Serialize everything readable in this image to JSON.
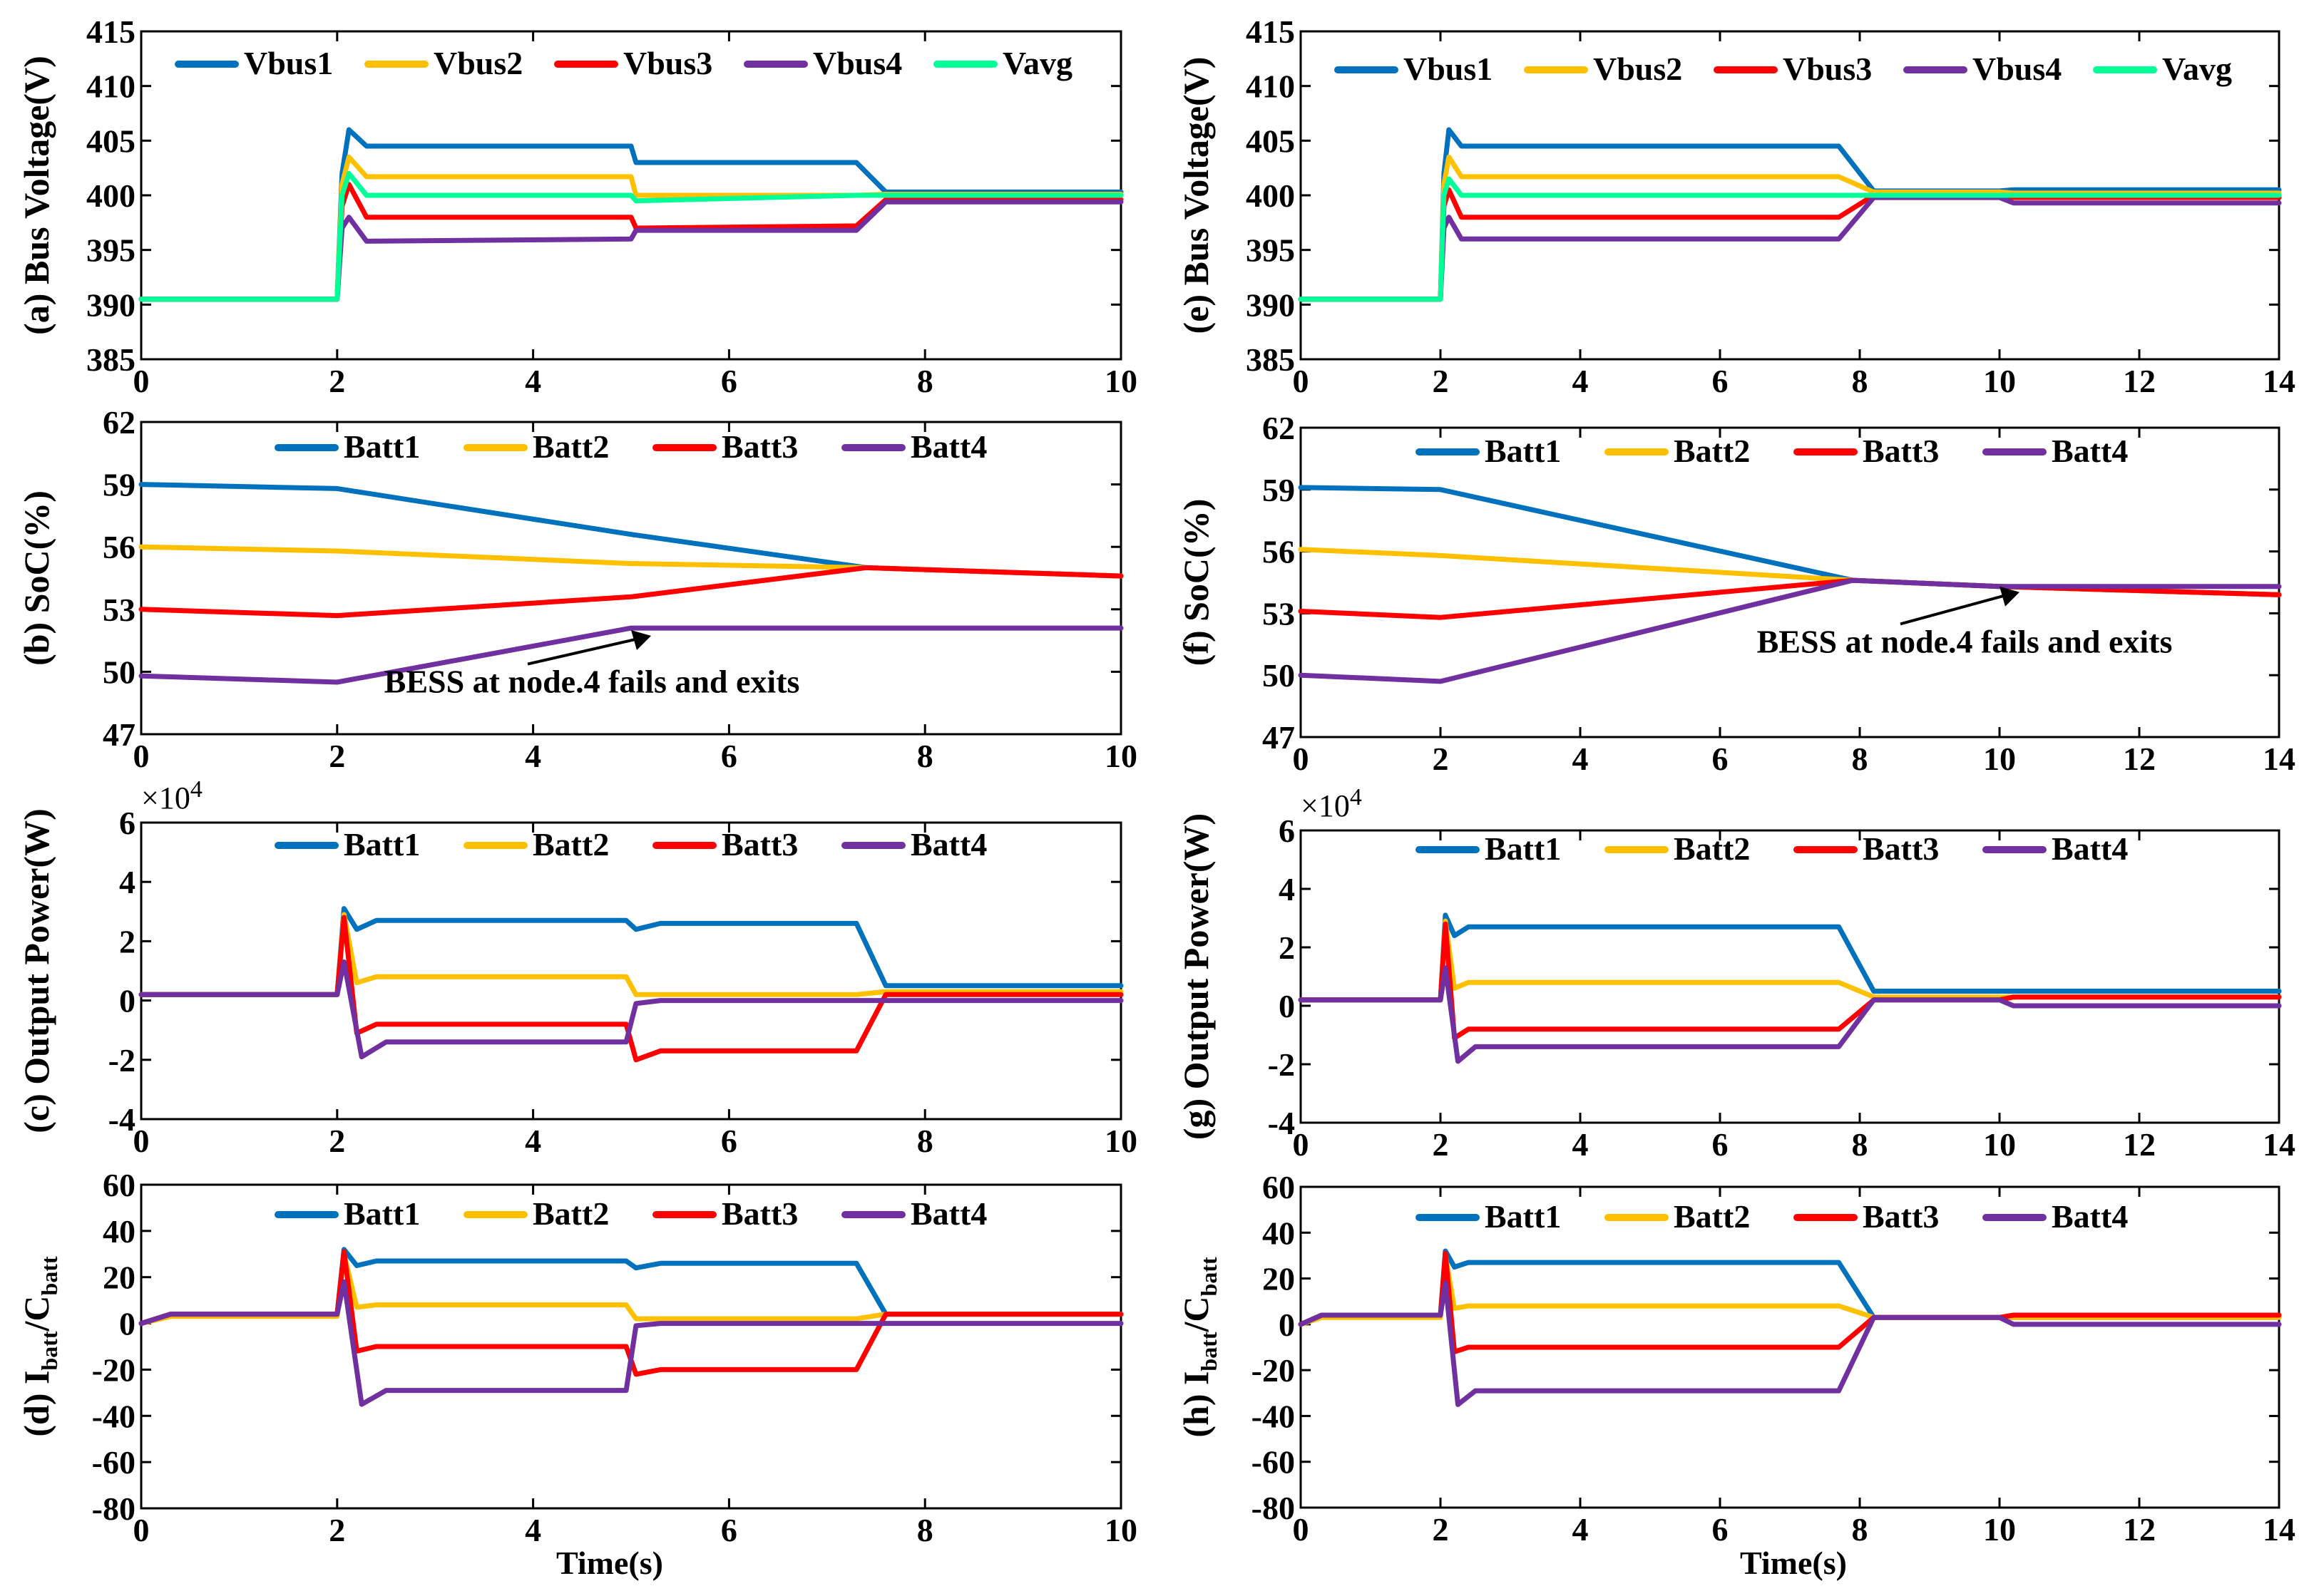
{
  "figure": {
    "shared_xlabel": "Time(s)"
  },
  "colors": {
    "Vbus1": "#0072BD",
    "Vbus2": "#FFC000",
    "Vbus3": "#FF0000",
    "Vbus4": "#7030A0",
    "Vavg": "#00FF99",
    "Batt1": "#0072BD",
    "Batt2": "#FFC000",
    "Batt3": "#FF0000",
    "Batt4": "#7030A0"
  },
  "chart_data": [
    {
      "id": "a",
      "type": "line",
      "ylabel": "(a) Bus Voltage(V)",
      "xlabel": "",
      "xlim": [
        0,
        10
      ],
      "ylim": [
        385,
        415
      ],
      "xticks": [
        0,
        2,
        4,
        6,
        8,
        10
      ],
      "yticks": [
        385,
        390,
        395,
        400,
        405,
        410,
        415
      ],
      "legend": [
        "Vbus1",
        "Vbus2",
        "Vbus3",
        "Vbus4",
        "Vavg"
      ],
      "series": [
        {
          "name": "Vbus1",
          "x": [
            0,
            2,
            2.05,
            2.12,
            2.3,
            5,
            5.05,
            7.3,
            7.6,
            10
          ],
          "y": [
            390.5,
            390.5,
            402,
            406,
            404.5,
            404.5,
            403,
            403,
            400.3,
            400.3
          ]
        },
        {
          "name": "Vbus2",
          "x": [
            0,
            2,
            2.05,
            2.12,
            2.3,
            5,
            5.05,
            7.3,
            7.6,
            10
          ],
          "y": [
            390.5,
            390.5,
            401,
            403.5,
            401.7,
            401.7,
            400,
            400,
            400.1,
            400.1
          ]
        },
        {
          "name": "Vbus3",
          "x": [
            0,
            2,
            2.05,
            2.12,
            2.3,
            5,
            5.05,
            7.3,
            7.6,
            10
          ],
          "y": [
            390.5,
            390.5,
            399,
            401,
            398,
            398,
            397,
            397.2,
            399.6,
            399.6
          ]
        },
        {
          "name": "Vbus4",
          "x": [
            0,
            2,
            2.05,
            2.12,
            2.3,
            5,
            5.05,
            7.3,
            7.6,
            10
          ],
          "y": [
            390.5,
            390.5,
            397,
            398,
            395.8,
            396,
            396.8,
            396.8,
            399.4,
            399.4
          ]
        },
        {
          "name": "Vavg",
          "x": [
            0,
            2,
            2.05,
            2.12,
            2.3,
            5,
            5.05,
            7.3,
            7.6,
            10
          ],
          "y": [
            390.5,
            390.5,
            400,
            402,
            400,
            400,
            399.5,
            400,
            400,
            400
          ]
        }
      ]
    },
    {
      "id": "e",
      "type": "line",
      "ylabel": "(e) Bus Voltage(V)",
      "xlabel": "",
      "xlim": [
        0,
        14
      ],
      "ylim": [
        385,
        415
      ],
      "xticks": [
        0,
        2,
        4,
        6,
        8,
        10,
        12,
        14
      ],
      "yticks": [
        385,
        390,
        395,
        400,
        405,
        410,
        415
      ],
      "legend": [
        "Vbus1",
        "Vbus2",
        "Vbus3",
        "Vbus4",
        "Vavg"
      ],
      "series": [
        {
          "name": "Vbus1",
          "x": [
            0,
            2,
            2.05,
            2.12,
            2.3,
            7.7,
            8.2,
            10,
            10.2,
            14
          ],
          "y": [
            390.5,
            390.5,
            402,
            406,
            404.5,
            404.5,
            400.4,
            400.4,
            400.5,
            400.5
          ]
        },
        {
          "name": "Vbus2",
          "x": [
            0,
            2,
            2.05,
            2.12,
            2.3,
            7.7,
            8.2,
            10,
            10.2,
            14
          ],
          "y": [
            390.5,
            390.5,
            401,
            403.5,
            401.7,
            401.7,
            400.3,
            400.3,
            400.2,
            400.2
          ]
        },
        {
          "name": "Vbus3",
          "x": [
            0,
            2,
            2.05,
            2.12,
            2.3,
            7.7,
            8.2,
            10,
            10.2,
            14
          ],
          "y": [
            390.5,
            390.5,
            399,
            400.5,
            398,
            398,
            400,
            400,
            399.8,
            399.8
          ]
        },
        {
          "name": "Vbus4",
          "x": [
            0,
            2,
            2.05,
            2.12,
            2.3,
            7.7,
            8.2,
            10,
            10.2,
            14
          ],
          "y": [
            390.5,
            390.5,
            397,
            398,
            396,
            396,
            399.8,
            399.8,
            399.3,
            399.3
          ]
        },
        {
          "name": "Vavg",
          "x": [
            0,
            2,
            2.05,
            2.12,
            2.3,
            7.7,
            8.2,
            10,
            10.2,
            14
          ],
          "y": [
            390.5,
            390.5,
            400,
            401.5,
            400,
            400,
            400,
            400,
            400,
            400
          ]
        }
      ]
    },
    {
      "id": "b",
      "type": "line",
      "ylabel": "(b) SoC(%)",
      "xlabel": "",
      "xlim": [
        0,
        10
      ],
      "ylim": [
        47,
        62
      ],
      "xticks": [
        0,
        2,
        4,
        6,
        8,
        10
      ],
      "yticks": [
        47,
        50,
        53,
        56,
        59,
        62
      ],
      "legend": [
        "Batt1",
        "Batt2",
        "Batt3",
        "Batt4"
      ],
      "annotation": {
        "text": "BESS at node.4 fails and exits",
        "x": 5,
        "y": 52,
        "text_x": 4.6,
        "text_y": 49
      },
      "series": [
        {
          "name": "Batt1",
          "x": [
            0,
            2,
            5,
            7.4,
            10
          ],
          "y": [
            59,
            58.8,
            56.6,
            55,
            54.6
          ]
        },
        {
          "name": "Batt2",
          "x": [
            0,
            2,
            5,
            7.4,
            10
          ],
          "y": [
            56,
            55.8,
            55.2,
            55,
            54.6
          ]
        },
        {
          "name": "Batt3",
          "x": [
            0,
            2,
            5,
            7.4,
            10
          ],
          "y": [
            53,
            52.7,
            53.6,
            55,
            54.6
          ]
        },
        {
          "name": "Batt4",
          "x": [
            0,
            2,
            5,
            7.4,
            10
          ],
          "y": [
            49.8,
            49.5,
            52.1,
            52.1,
            52.1
          ]
        }
      ]
    },
    {
      "id": "f",
      "type": "line",
      "ylabel": "(f) SoC(%)",
      "xlabel": "",
      "xlim": [
        0,
        14
      ],
      "ylim": [
        47,
        62
      ],
      "xticks": [
        0,
        2,
        4,
        6,
        8,
        10,
        12,
        14
      ],
      "yticks": [
        47,
        50,
        53,
        56,
        59,
        62
      ],
      "legend": [
        "Batt1",
        "Batt2",
        "Batt3",
        "Batt4"
      ],
      "annotation": {
        "text": "BESS at node.4 fails and exits",
        "x": 10,
        "y": 54.3,
        "text_x": 9.5,
        "text_y": 51.1
      },
      "series": [
        {
          "name": "Batt1",
          "x": [
            0,
            2,
            7.9,
            10,
            14
          ],
          "y": [
            59.1,
            59,
            54.6,
            54.3,
            53.9
          ]
        },
        {
          "name": "Batt2",
          "x": [
            0,
            2,
            7.9,
            10,
            14
          ],
          "y": [
            56.1,
            55.8,
            54.6,
            54.3,
            53.9
          ]
        },
        {
          "name": "Batt3",
          "x": [
            0,
            2,
            7.9,
            10,
            14
          ],
          "y": [
            53.1,
            52.8,
            54.6,
            54.3,
            53.9
          ]
        },
        {
          "name": "Batt4",
          "x": [
            0,
            2,
            7.9,
            10,
            14
          ],
          "y": [
            50,
            49.7,
            54.6,
            54.3,
            54.3
          ]
        }
      ]
    },
    {
      "id": "c",
      "type": "line",
      "ylabel": "Output Power(W)",
      "ylabel_prefix": "(c)",
      "exponent": "×10",
      "exponent_power": "4",
      "xlabel": "",
      "xlim": [
        0,
        10
      ],
      "ylim": [
        -4,
        6
      ],
      "xticks": [
        0,
        2,
        4,
        6,
        8,
        10
      ],
      "yticks": [
        -4,
        -2,
        0,
        2,
        4,
        6
      ],
      "legend": [
        "Batt1",
        "Batt2",
        "Batt3",
        "Batt4"
      ],
      "series": [
        {
          "name": "Batt1",
          "x": [
            0,
            2,
            2.07,
            2.2,
            2.4,
            4.95,
            5.05,
            5.3,
            7.3,
            7.6,
            10
          ],
          "y": [
            0.2,
            0.2,
            3.1,
            2.4,
            2.7,
            2.7,
            2.4,
            2.6,
            2.6,
            0.5,
            0.5
          ]
        },
        {
          "name": "Batt2",
          "x": [
            0,
            2,
            2.07,
            2.2,
            2.4,
            4.95,
            5.05,
            5.3,
            7.3,
            7.6,
            10
          ],
          "y": [
            0.2,
            0.2,
            2.9,
            0.6,
            0.8,
            0.8,
            0.2,
            0.2,
            0.2,
            0.3,
            0.3
          ]
        },
        {
          "name": "Batt3",
          "x": [
            0,
            2,
            2.07,
            2.2,
            2.4,
            4.95,
            5.05,
            5.3,
            7.3,
            7.6,
            10
          ],
          "y": [
            0.2,
            0.2,
            2.8,
            -1.1,
            -0.8,
            -0.8,
            -2,
            -1.7,
            -1.7,
            0.2,
            0.2
          ]
        },
        {
          "name": "Batt4",
          "x": [
            0,
            2,
            2.07,
            2.25,
            2.5,
            4.95,
            5.05,
            5.3,
            7.3,
            7.6,
            10
          ],
          "y": [
            0.2,
            0.2,
            1.3,
            -1.9,
            -1.4,
            -1.4,
            -0.1,
            0,
            0,
            0,
            0
          ]
        }
      ]
    },
    {
      "id": "g",
      "type": "line",
      "ylabel": "Output Power(W)",
      "ylabel_prefix": "(g)",
      "exponent": "×10",
      "exponent_power": "4",
      "xlabel": "",
      "xlim": [
        0,
        14
      ],
      "ylim": [
        -4,
        6
      ],
      "xticks": [
        0,
        2,
        4,
        6,
        8,
        10,
        12,
        14
      ],
      "yticks": [
        -4,
        -2,
        0,
        2,
        4,
        6
      ],
      "legend": [
        "Batt1",
        "Batt2",
        "Batt3",
        "Batt4"
      ],
      "series": [
        {
          "name": "Batt1",
          "x": [
            0,
            2,
            2.07,
            2.2,
            2.4,
            7.7,
            8.2,
            10,
            10.2,
            14
          ],
          "y": [
            0.2,
            0.2,
            3.1,
            2.4,
            2.7,
            2.7,
            0.5,
            0.5,
            0.5,
            0.5
          ]
        },
        {
          "name": "Batt2",
          "x": [
            0,
            2,
            2.07,
            2.2,
            2.4,
            7.7,
            8.2,
            10,
            10.2,
            14
          ],
          "y": [
            0.2,
            0.2,
            2.9,
            0.6,
            0.8,
            0.8,
            0.3,
            0.3,
            0.3,
            0.3
          ]
        },
        {
          "name": "Batt3",
          "x": [
            0,
            2,
            2.07,
            2.2,
            2.4,
            7.7,
            8.2,
            10,
            10.2,
            14
          ],
          "y": [
            0.2,
            0.2,
            2.8,
            -1.1,
            -0.8,
            -0.8,
            0.2,
            0.2,
            0.3,
            0.3
          ]
        },
        {
          "name": "Batt4",
          "x": [
            0,
            2,
            2.07,
            2.25,
            2.5,
            7.7,
            8.2,
            10,
            10.2,
            14
          ],
          "y": [
            0.2,
            0.2,
            1.3,
            -1.9,
            -1.4,
            -1.4,
            0.2,
            0.2,
            0,
            0
          ]
        }
      ]
    },
    {
      "id": "d",
      "type": "line",
      "ylabel_main": "I",
      "ylabel_sub1": "batt",
      "ylabel_mid": "/C",
      "ylabel_sub2": "batt",
      "ylabel_prefix": "(d)",
      "xlabel": "Time(s)",
      "xlim": [
        0,
        10
      ],
      "ylim": [
        -80,
        60
      ],
      "xticks": [
        0,
        2,
        4,
        6,
        8,
        10
      ],
      "yticks": [
        -80,
        -60,
        -40,
        -20,
        0,
        20,
        40,
        60
      ],
      "legend": [
        "Batt1",
        "Batt2",
        "Batt3",
        "Batt4"
      ],
      "series": [
        {
          "name": "Batt1",
          "x": [
            0,
            0.3,
            2,
            2.07,
            2.2,
            2.4,
            4.95,
            5.05,
            5.3,
            7.3,
            7.6,
            10
          ],
          "y": [
            0,
            4,
            4,
            32,
            25,
            27,
            27,
            24,
            26,
            26,
            4,
            4
          ]
        },
        {
          "name": "Batt2",
          "x": [
            0,
            0.3,
            2,
            2.07,
            2.2,
            2.4,
            4.95,
            5.05,
            5.3,
            7.3,
            7.6,
            10
          ],
          "y": [
            0,
            3,
            3,
            30,
            7,
            8,
            8,
            2,
            2,
            2,
            4,
            4
          ]
        },
        {
          "name": "Batt3",
          "x": [
            0,
            0.3,
            2,
            2.07,
            2.2,
            2.4,
            4.95,
            5.05,
            5.3,
            7.3,
            7.6,
            10
          ],
          "y": [
            0,
            4,
            4,
            31,
            -12,
            -10,
            -10,
            -22,
            -20,
            -20,
            4,
            4
          ]
        },
        {
          "name": "Batt4",
          "x": [
            0,
            0.3,
            2,
            2.07,
            2.25,
            2.5,
            4.95,
            5.05,
            5.3,
            7.3,
            7.6,
            10
          ],
          "y": [
            0,
            4,
            4,
            18,
            -35,
            -29,
            -29,
            -1,
            0,
            0,
            0,
            0
          ]
        }
      ]
    },
    {
      "id": "h",
      "type": "line",
      "ylabel_main": "I",
      "ylabel_sub1": "batt",
      "ylabel_mid": "/C",
      "ylabel_sub2": "batt",
      "ylabel_prefix": "(h)",
      "xlabel": "Time(s)",
      "xlim": [
        0,
        14
      ],
      "ylim": [
        -80,
        60
      ],
      "xticks": [
        0,
        2,
        4,
        6,
        8,
        10,
        12,
        14
      ],
      "yticks": [
        -80,
        -60,
        -40,
        -20,
        0,
        20,
        40,
        60
      ],
      "legend": [
        "Batt1",
        "Batt2",
        "Batt3",
        "Batt4"
      ],
      "series": [
        {
          "name": "Batt1",
          "x": [
            0,
            0.3,
            2,
            2.07,
            2.2,
            2.4,
            7.7,
            8.2,
            10,
            10.2,
            14
          ],
          "y": [
            0,
            4,
            4,
            32,
            25,
            27,
            27,
            3,
            3,
            3,
            3
          ]
        },
        {
          "name": "Batt2",
          "x": [
            0,
            0.3,
            2,
            2.07,
            2.2,
            2.4,
            7.7,
            8.2,
            10,
            10.2,
            14
          ],
          "y": [
            0,
            3,
            3,
            30,
            7,
            8,
            8,
            3,
            3,
            3,
            3
          ]
        },
        {
          "name": "Batt3",
          "x": [
            0,
            0.3,
            2,
            2.07,
            2.2,
            2.4,
            7.7,
            8.2,
            10,
            10.2,
            14
          ],
          "y": [
            0,
            4,
            4,
            31,
            -12,
            -10,
            -10,
            3,
            3,
            4,
            4
          ]
        },
        {
          "name": "Batt4",
          "x": [
            0,
            0.3,
            2,
            2.07,
            2.25,
            2.5,
            7.7,
            8.2,
            10,
            10.2,
            14
          ],
          "y": [
            0,
            4,
            4,
            18,
            -35,
            -29,
            -29,
            3,
            3,
            0,
            0
          ]
        }
      ]
    }
  ]
}
